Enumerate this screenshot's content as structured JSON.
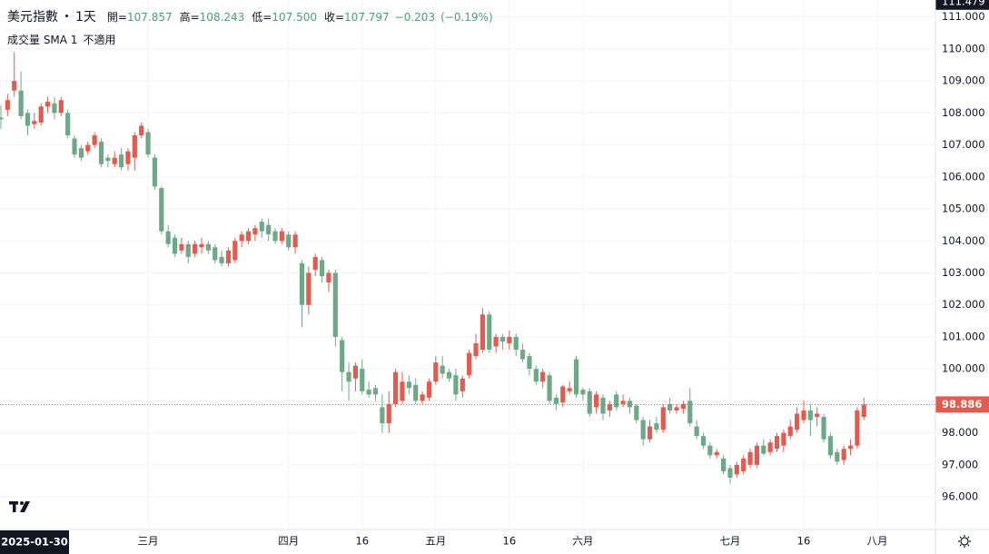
{
  "chart_data": {
    "type": "candlestick",
    "title": "美元指數",
    "interval": "1天",
    "header": {
      "open_label": "開=",
      "open": 107.857,
      "high_label": "高=",
      "high": 108.243,
      "low_label": "低=",
      "low": {
        "value": 107.5,
        "label": "107.500"
      },
      "close_label": "收=",
      "close": 107.797,
      "change": {
        "value": -0.203,
        "label": "−0.203"
      },
      "change_pct": {
        "value": -0.19,
        "label": "(−0.19%)"
      }
    },
    "legend": {
      "name": "成交量 SMA 1",
      "value": "不適用"
    },
    "crosshair_date": "2025-01-30",
    "axis_top_label": 111.479,
    "up_color": "#e35b4f",
    "down_color": "#6fa888",
    "grid": true,
    "categories": [
      null,
      null,
      null,
      null,
      null,
      null,
      null,
      null,
      null,
      null,
      null,
      null,
      null,
      null,
      null,
      null,
      null,
      null,
      null,
      null,
      null,
      null,
      "三月",
      null,
      null,
      null,
      null,
      null,
      null,
      null,
      null,
      null,
      null,
      null,
      null,
      null,
      null,
      null,
      null,
      null,
      null,
      null,
      null,
      "四月",
      null,
      null,
      null,
      null,
      null,
      null,
      null,
      null,
      null,
      null,
      "16",
      null,
      null,
      null,
      null,
      null,
      null,
      null,
      null,
      null,
      null,
      "五月",
      null,
      null,
      null,
      null,
      null,
      null,
      null,
      null,
      null,
      null,
      "16",
      null,
      null,
      null,
      null,
      null,
      null,
      null,
      null,
      null,
      null,
      "六月",
      null,
      null,
      null,
      null,
      null,
      null,
      null,
      null,
      null,
      null,
      null,
      null,
      null,
      null,
      null,
      null,
      null,
      null,
      null,
      null,
      null,
      "七月",
      null,
      null,
      null,
      null,
      null,
      null,
      null,
      null,
      null,
      null,
      "16",
      null,
      null,
      null,
      null,
      null,
      null,
      null,
      null,
      null,
      null,
      "八月"
    ],
    "open": [
      107.857,
      108.1,
      108.7,
      108.7,
      108.0,
      107.65,
      107.7,
      108.2,
      108.3,
      108.0,
      108.0,
      107.2,
      106.9,
      106.8,
      107.0,
      107.1,
      106.6,
      106.4,
      106.7,
      106.4,
      106.6,
      107.3,
      107.4,
      106.6,
      105.65,
      104.3,
      104.1,
      103.7,
      103.9,
      103.6,
      103.8,
      103.9,
      103.8,
      103.5,
      103.3,
      103.4,
      104.0,
      104.0,
      104.2,
      104.6,
      104.5,
      104.3,
      104.0,
      104.2,
      103.8,
      103.3,
      102.0,
      103.1,
      103.4,
      102.7,
      103.0,
      100.9,
      99.9,
      99.7,
      100.0,
      99.35,
      99.4,
      98.8,
      98.3,
      98.9,
      99.0,
      99.6,
      99.5,
      99.0,
      99.1,
      99.6,
      100.1,
      99.9,
      99.8,
      99.3,
      99.8,
      100.4,
      100.6,
      101.7,
      100.7,
      101.0,
      100.8,
      101.0,
      100.6,
      100.4,
      100.0,
      99.6,
      99.8,
      99.1,
      98.95,
      99.3,
      100.3,
      99.35,
      99.3,
      98.8,
      99.1,
      98.7,
      99.2,
      98.9,
      99.0,
      98.85,
      98.4,
      97.8,
      98.3,
      98.1,
      98.9,
      98.7,
      98.75,
      99.0,
      98.2,
      97.9,
      97.6,
      97.3,
      97.2,
      96.9,
      96.7,
      96.8,
      97.0,
      97.0,
      97.6,
      97.4,
      97.5,
      97.6,
      97.9,
      98.1,
      98.4,
      98.7,
      98.5,
      98.5,
      97.9,
      97.4,
      97.15,
      97.5,
      97.6,
      98.5,
      null,
      null
    ],
    "high": [
      108.243,
      108.6,
      109.9,
      109.3,
      108.1,
      108.0,
      108.3,
      108.5,
      108.5,
      108.5,
      108.1,
      107.3,
      107.0,
      107.1,
      107.4,
      107.2,
      106.7,
      106.8,
      106.9,
      106.9,
      107.4,
      107.7,
      107.5,
      106.7,
      105.7,
      104.5,
      104.2,
      104.1,
      104.0,
      104.0,
      104.1,
      104.0,
      103.9,
      103.7,
      103.8,
      104.1,
      104.3,
      104.4,
      104.5,
      104.7,
      104.7,
      104.4,
      104.4,
      104.3,
      104.3,
      103.4,
      103.2,
      103.6,
      103.5,
      103.1,
      103.1,
      101.0,
      100.2,
      100.2,
      100.3,
      99.6,
      99.5,
      99.2,
      99.3,
      100.0,
      99.9,
      99.8,
      99.7,
      99.3,
      99.7,
      100.4,
      100.4,
      100.0,
      100.0,
      99.8,
      100.6,
      101.1,
      101.9,
      101.8,
      101.1,
      101.1,
      101.2,
      101.1,
      100.8,
      100.5,
      100.1,
      100.0,
      99.9,
      99.2,
      99.5,
      99.6,
      100.4,
      99.4,
      99.4,
      99.3,
      99.2,
      99.0,
      99.3,
      99.2,
      99.1,
      98.9,
      98.5,
      98.4,
      98.5,
      98.9,
      99.1,
      98.9,
      99.0,
      99.4,
      98.4,
      98.0,
      97.7,
      97.5,
      97.3,
      97.0,
      97.1,
      97.3,
      97.5,
      97.7,
      97.8,
      97.8,
      98.0,
      98.1,
      98.4,
      98.8,
      99.0,
      98.9,
      98.8,
      98.6,
      98.0,
      97.5,
      97.6,
      97.8,
      98.8,
      99.1,
      null,
      null
    ],
    "low": [
      107.5,
      107.9,
      108.5,
      107.8,
      107.3,
      107.5,
      107.6,
      108.0,
      107.8,
      107.9,
      107.2,
      106.6,
      106.5,
      106.7,
      106.9,
      106.3,
      106.3,
      106.3,
      106.2,
      106.2,
      106.2,
      107.2,
      106.6,
      105.6,
      104.2,
      103.8,
      103.5,
      103.6,
      103.3,
      103.5,
      103.6,
      103.6,
      103.3,
      103.2,
      103.2,
      103.3,
      103.8,
      103.9,
      104.0,
      104.1,
      104.0,
      103.9,
      103.9,
      103.7,
      103.6,
      101.3,
      101.7,
      102.9,
      102.7,
      102.4,
      100.7,
      99.3,
      99.0,
      99.3,
      99.2,
      99.1,
      99.0,
      98.0,
      98.0,
      98.8,
      98.9,
      99.2,
      98.9,
      98.9,
      99.0,
      99.5,
      99.7,
      99.6,
      99.0,
      99.1,
      99.7,
      100.3,
      100.5,
      100.5,
      100.5,
      100.6,
      100.6,
      100.4,
      100.2,
      99.8,
      99.5,
      99.4,
      98.9,
      98.7,
      98.8,
      99.2,
      99.1,
      99.0,
      98.5,
      98.6,
      98.4,
      98.5,
      98.7,
      98.8,
      98.6,
      98.3,
      97.6,
      97.7,
      98.0,
      98.0,
      98.6,
      98.6,
      98.6,
      98.2,
      97.8,
      97.5,
      97.2,
      97.2,
      96.7,
      96.4,
      96.6,
      96.7,
      96.9,
      96.9,
      97.3,
      97.3,
      97.4,
      97.4,
      97.8,
      98.0,
      98.3,
      97.9,
      98.2,
      97.7,
      97.2,
      97.0,
      97.0,
      97.3,
      97.5,
      98.4,
      null,
      null
    ],
    "close": [
      107.797,
      108.4,
      109.0,
      107.9,
      107.6,
      107.75,
      108.2,
      108.35,
      108.0,
      108.4,
      107.3,
      106.7,
      106.6,
      107.0,
      107.3,
      106.4,
      106.5,
      106.6,
      106.3,
      106.8,
      107.3,
      107.6,
      106.7,
      105.7,
      104.3,
      103.9,
      103.6,
      103.9,
      103.5,
      103.9,
      103.9,
      103.7,
      103.4,
      103.3,
      103.7,
      104.0,
      104.2,
      104.3,
      104.4,
      104.3,
      104.2,
      104.0,
      104.3,
      103.8,
      104.2,
      102.0,
      103.0,
      103.5,
      102.9,
      103.0,
      101.0,
      99.9,
      99.6,
      100.1,
      99.3,
      99.2,
      99.2,
      98.3,
      98.9,
      99.9,
      99.6,
      99.4,
      99.0,
      99.2,
      99.6,
      100.2,
      99.85,
      99.7,
      99.2,
      99.7,
      100.5,
      100.8,
      101.7,
      100.6,
      101.0,
      100.85,
      101.0,
      100.6,
      100.3,
      100.0,
      99.6,
      99.9,
      99.0,
      98.9,
      99.45,
      99.4,
      99.2,
      99.2,
      98.6,
      99.2,
      98.6,
      98.9,
      98.8,
      99.0,
      98.8,
      98.4,
      97.8,
      98.2,
      98.1,
      98.8,
      98.7,
      98.8,
      98.9,
      98.3,
      97.9,
      97.6,
      97.3,
      97.4,
      96.8,
      96.6,
      97.0,
      97.2,
      97.4,
      97.6,
      97.35,
      97.7,
      97.9,
      98.0,
      98.2,
      98.6,
      98.7,
      98.4,
      98.6,
      97.8,
      97.3,
      97.1,
      97.5,
      97.6,
      98.7,
      98.886,
      null,
      null
    ],
    "ylim": [
      94.98,
      111.53
    ],
    "yticks": [
      {
        "value": 96,
        "label": "96.000"
      },
      {
        "value": 97,
        "label": "97.000"
      },
      {
        "value": 98,
        "label": "98.000"
      },
      {
        "value": 99,
        "label": "99.000"
      },
      {
        "value": 100,
        "label": "100.000"
      },
      {
        "value": 101,
        "label": "101.000"
      },
      {
        "value": 102,
        "label": "102.000"
      },
      {
        "value": 103,
        "label": "103.000"
      },
      {
        "value": 104,
        "label": "104.000"
      },
      {
        "value": 105,
        "label": "105.000"
      },
      {
        "value": 106,
        "label": "106.000"
      },
      {
        "value": 107,
        "label": "107.000"
      },
      {
        "value": 108,
        "label": "108.000"
      },
      {
        "value": 109,
        "label": "109.000"
      },
      {
        "value": 110,
        "label": "110.000"
      },
      {
        "value": 111,
        "label": "111.000"
      }
    ]
  }
}
